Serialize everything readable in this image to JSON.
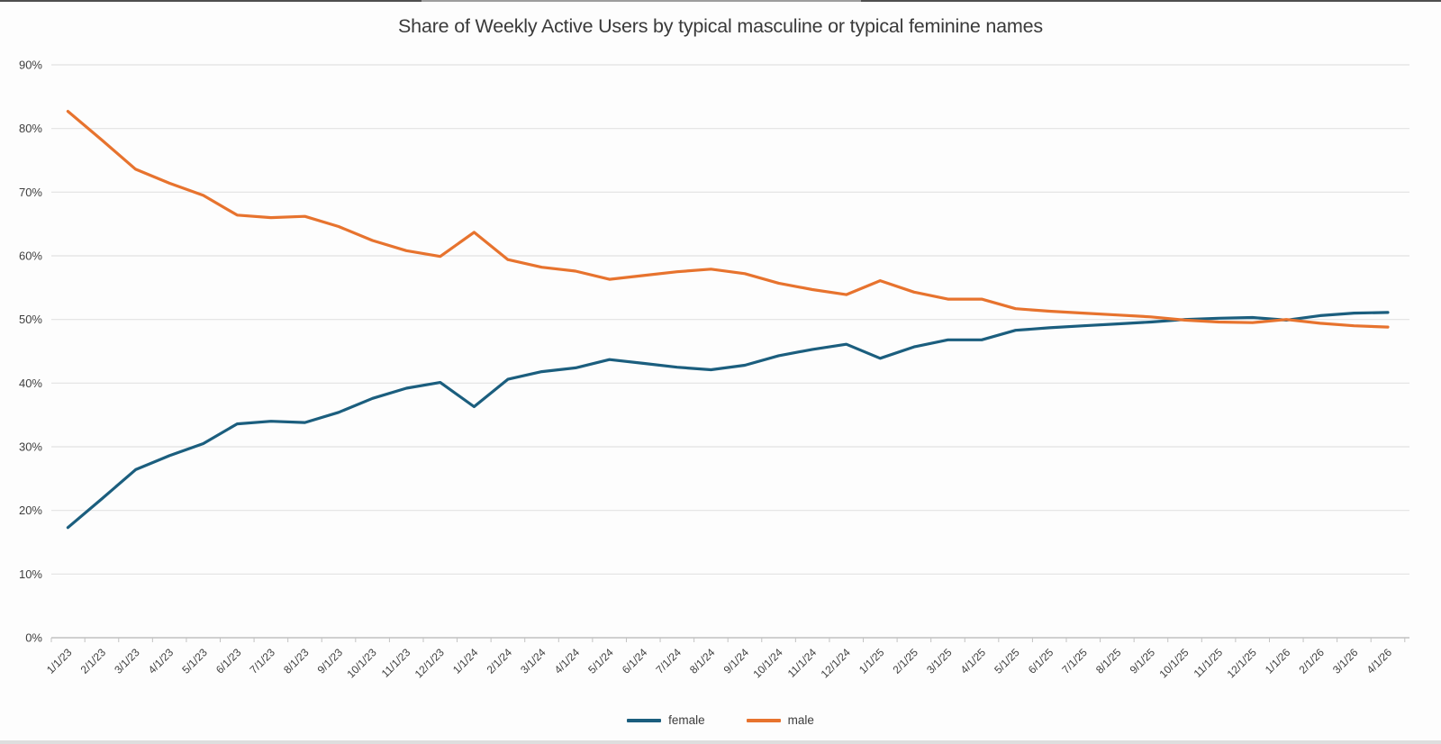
{
  "chart_data": {
    "type": "line",
    "title": "Share of Weekly Active Users by typical masculine or typical feminine names",
    "xlabel": "",
    "ylabel": "",
    "ylim": [
      0,
      90
    ],
    "y_tick_labels": [
      "0%",
      "10%",
      "20%",
      "30%",
      "40%",
      "50%",
      "60%",
      "70%",
      "80%",
      "90%"
    ],
    "grid": true,
    "legend_position": "bottom",
    "categories": [
      "1/1/23",
      "2/1/23",
      "3/1/23",
      "4/1/23",
      "5/1/23",
      "6/1/23",
      "7/1/23",
      "8/1/23",
      "9/1/23",
      "10/1/23",
      "11/1/23",
      "12/1/23",
      "1/1/24",
      "2/1/24",
      "3/1/24",
      "4/1/24",
      "5/1/24",
      "6/1/24",
      "7/1/24",
      "8/1/24",
      "9/1/24",
      "10/1/24",
      "11/1/24",
      "12/1/24",
      "1/1/25",
      "2/1/25",
      "3/1/25",
      "4/1/25",
      "5/1/25",
      "6/1/25",
      "7/1/25",
      "8/1/25",
      "9/1/25",
      "10/1/25",
      "11/1/25",
      "12/1/25",
      "1/1/26",
      "2/1/26",
      "3/1/26",
      "4/1/26"
    ],
    "series": [
      {
        "name": "female",
        "color": "#1b5e7e",
        "values": [
          17.3,
          21.8,
          26.4,
          28.6,
          30.5,
          33.6,
          34.0,
          33.8,
          35.4,
          37.6,
          39.2,
          40.1,
          36.3,
          40.6,
          41.8,
          42.4,
          43.7,
          43.1,
          42.5,
          42.1,
          42.8,
          44.3,
          45.3,
          46.1,
          43.9,
          45.7,
          46.8,
          46.8,
          48.3,
          48.7,
          49.0,
          49.3,
          49.6,
          50.0,
          50.2,
          50.3,
          49.9,
          50.6,
          51.0,
          51.1
        ]
      },
      {
        "name": "male",
        "color": "#e7732e",
        "values": [
          82.7,
          78.2,
          73.6,
          71.4,
          69.5,
          66.4,
          66.0,
          66.2,
          64.6,
          62.4,
          60.8,
          59.9,
          63.7,
          59.4,
          58.2,
          57.6,
          56.3,
          56.9,
          57.5,
          57.9,
          57.2,
          55.7,
          54.7,
          53.9,
          56.1,
          54.3,
          53.2,
          53.2,
          51.7,
          51.3,
          51.0,
          50.7,
          50.4,
          49.9,
          49.6,
          49.5,
          50.0,
          49.4,
          49.0,
          48.8
        ]
      }
    ]
  }
}
